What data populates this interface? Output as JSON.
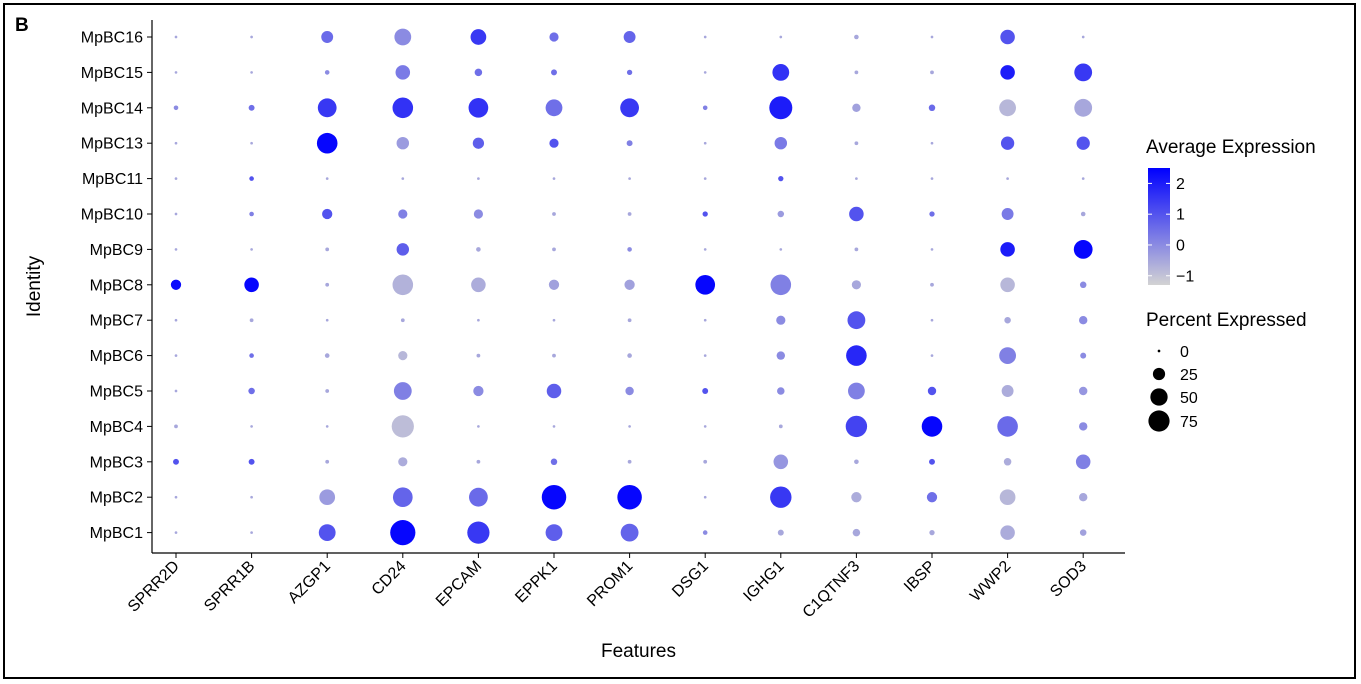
{
  "panel_label": "B",
  "chart_data": {
    "type": "dotplot",
    "xlabel": "Features",
    "ylabel": "Identity",
    "features": [
      "SPRR2D",
      "SPRR1B",
      "AZGP1",
      "CD24",
      "EPCAM",
      "EPPK1",
      "PROM1",
      "DSG1",
      "IGHG1",
      "C1QTNF3",
      "IBSP",
      "WWP2",
      "SOD3"
    ],
    "identities": [
      "MpBC1",
      "MpBC2",
      "MpBC3",
      "MpBC4",
      "MpBC5",
      "MpBC6",
      "MpBC7",
      "MpBC8",
      "MpBC9",
      "MpBC10",
      "MpBC11",
      "MpBC13",
      "MpBC14",
      "MpBC15",
      "MpBC16"
    ],
    "percent_expressed": {
      "MpBC1": [
        1,
        1,
        40,
        90,
        70,
        40,
        45,
        3,
        5,
        8,
        4,
        30,
        6
      ],
      "MpBC2": [
        1,
        1,
        35,
        55,
        50,
        85,
        85,
        1,
        65,
        15,
        15,
        35,
        10
      ],
      "MpBC3": [
        5,
        5,
        2,
        12,
        2,
        6,
        2,
        2,
        30,
        3,
        5,
        8,
        30
      ],
      "MpBC4": [
        2,
        1,
        1,
        70,
        1,
        1,
        1,
        1,
        2,
        65,
        60,
        60,
        10
      ],
      "MpBC5": [
        1,
        6,
        2,
        45,
        15,
        30,
        10,
        5,
        8,
        40,
        10,
        20,
        10
      ],
      "MpBC6": [
        1,
        3,
        3,
        12,
        2,
        2,
        3,
        1,
        10,
        60,
        1,
        40,
        5
      ],
      "MpBC7": [
        1,
        2,
        1,
        2,
        1,
        1,
        2,
        1,
        12,
        45,
        1,
        6,
        10
      ],
      "MpBC8": [
        15,
        30,
        2,
        60,
        30,
        15,
        15,
        55,
        60,
        12,
        2,
        30,
        6
      ],
      "MpBC9": [
        1,
        1,
        2,
        22,
        3,
        2,
        3,
        1,
        1,
        2,
        1,
        30,
        50
      ],
      "MpBC10": [
        1,
        3,
        15,
        12,
        12,
        2,
        2,
        4,
        6,
        30,
        4,
        20,
        3
      ],
      "MpBC11": [
        1,
        3,
        1,
        1,
        1,
        1,
        1,
        1,
        4,
        1,
        1,
        1,
        1
      ],
      "MpBC13": [
        1,
        1,
        60,
        22,
        18,
        12,
        5,
        1,
        22,
        2,
        1,
        25,
        25
      ],
      "MpBC14": [
        3,
        5,
        50,
        60,
        55,
        40,
        50,
        3,
        75,
        10,
        6,
        40,
        45
      ],
      "MpBC15": [
        1,
        1,
        3,
        30,
        8,
        5,
        4,
        1,
        40,
        2,
        2,
        30,
        45
      ],
      "MpBC16": [
        1,
        1,
        20,
        40,
        35,
        12,
        20,
        1,
        1,
        3,
        1,
        30,
        1
      ]
    },
    "average_expression": {
      "MpBC1": [
        -0.5,
        -0.5,
        1.0,
        2.4,
        1.5,
        0.8,
        0.7,
        0,
        -0.5,
        -0.5,
        -0.5,
        -0.6,
        -0.4
      ],
      "MpBC2": [
        -0.5,
        -0.5,
        -0.3,
        0.7,
        0.6,
        2.4,
        2.4,
        -0.5,
        1.5,
        -0.6,
        0.5,
        -0.8,
        -0.5
      ],
      "MpBC3": [
        1.0,
        1.0,
        -0.5,
        -0.6,
        -0.5,
        0.5,
        -0.5,
        -0.5,
        -0.2,
        -0.5,
        1.0,
        -0.6,
        0.2
      ],
      "MpBC4": [
        -0.5,
        -0.5,
        -0.5,
        -0.9,
        -0.5,
        -0.5,
        -0.5,
        -0.5,
        -0.5,
        1.3,
        2.4,
        0.6,
        0
      ],
      "MpBC5": [
        -0.5,
        0.5,
        -0.5,
        0.2,
        0,
        0.8,
        0,
        1.0,
        0,
        0.2,
        1.0,
        -0.6,
        -0.2
      ],
      "MpBC6": [
        -0.5,
        0.5,
        -0.5,
        -0.8,
        -0.5,
        -0.5,
        -0.5,
        -0.5,
        0,
        1.8,
        -0.5,
        0.2,
        0
      ],
      "MpBC7": [
        -0.5,
        -0.5,
        -0.5,
        -0.5,
        -0.5,
        -0.5,
        -0.5,
        -0.5,
        0,
        1.0,
        -0.5,
        -0.5,
        0
      ],
      "MpBC8": [
        2.3,
        2.4,
        -0.5,
        -0.7,
        -0.6,
        -0.4,
        -0.4,
        2.4,
        0.2,
        -0.5,
        -0.5,
        -0.8,
        0
      ],
      "MpBC9": [
        -0.5,
        -0.5,
        -0.5,
        0.8,
        -0.5,
        -0.5,
        0,
        -0.5,
        -0.5,
        -0.5,
        -0.5,
        2.0,
        2.4
      ],
      "MpBC10": [
        -0.5,
        0.2,
        1.0,
        0.2,
        0,
        -0.5,
        -0.5,
        1.0,
        -0.3,
        1.0,
        0.5,
        0.3,
        -0.5
      ],
      "MpBC11": [
        -0.5,
        1.0,
        -0.5,
        -0.5,
        -0.5,
        -0.5,
        -0.5,
        -0.5,
        1.0,
        -0.5,
        -0.5,
        -0.5,
        -0.5
      ],
      "MpBC13": [
        -0.5,
        -0.5,
        2.4,
        -0.3,
        0.8,
        1.0,
        0.2,
        -0.5,
        0.3,
        -0.5,
        -0.5,
        1.0,
        1.0
      ],
      "MpBC14": [
        0,
        0.5,
        1.5,
        1.6,
        1.6,
        0.5,
        1.5,
        0.2,
        2.0,
        -0.4,
        0.6,
        -0.8,
        -0.5
      ],
      "MpBC15": [
        -0.5,
        -0.5,
        0,
        0.3,
        0.5,
        0.5,
        0.5,
        -0.5,
        1.6,
        -0.5,
        -0.5,
        2.0,
        1.5
      ],
      "MpBC16": [
        -0.5,
        -0.5,
        0.6,
        0,
        1.5,
        0.5,
        0.7,
        -0.5,
        -0.5,
        -0.5,
        -0.5,
        1.0,
        -0.5
      ]
    },
    "color_scale": {
      "low": "#d3d3d3",
      "high": "#0000ff",
      "min": -1.3,
      "max": 2.5
    },
    "legend_color": {
      "title": "Average Expression",
      "ticks": [
        "2",
        "1",
        "0",
        "−1"
      ],
      "tick_values": [
        2,
        1,
        0,
        -1
      ]
    },
    "legend_size": {
      "title": "Percent Expressed",
      "labels": [
        "0",
        "25",
        "50",
        "75"
      ],
      "values": [
        0,
        25,
        50,
        75
      ]
    },
    "size_range": [
      0,
      75
    ],
    "legend_placement": "right",
    "grid": false
  }
}
